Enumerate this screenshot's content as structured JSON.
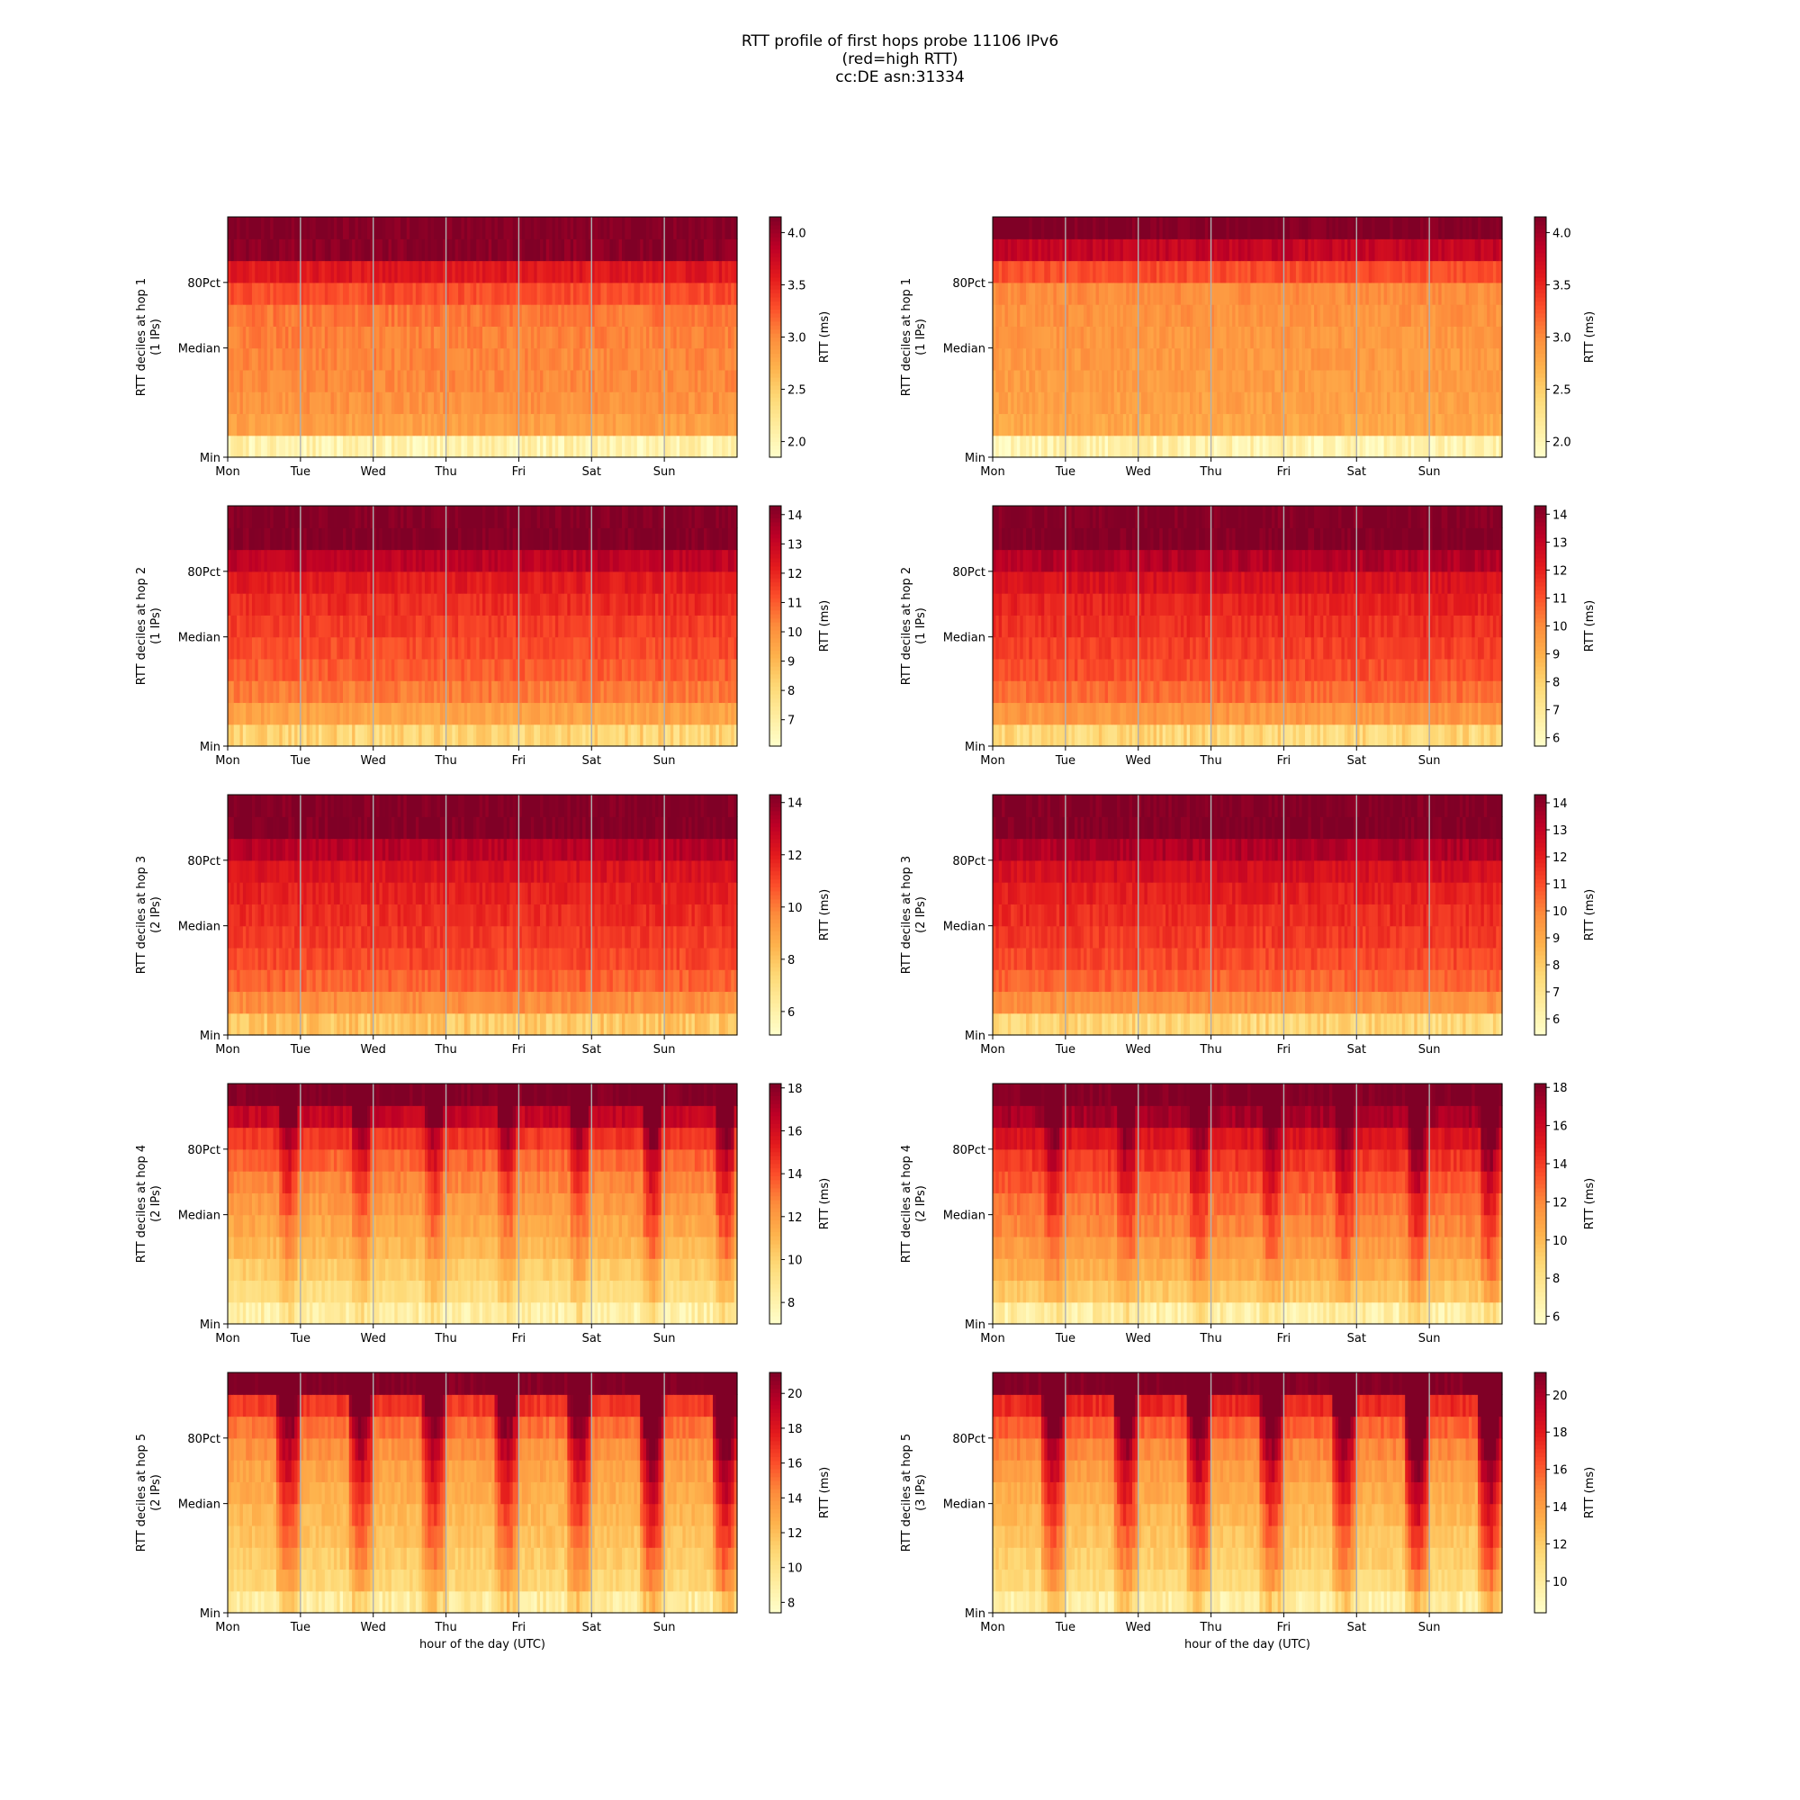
{
  "figure": {
    "title_lines": [
      "RTT profile of first hops probe 11106 IPv6",
      "(red=high RTT)",
      "cc:DE asn:31334"
    ]
  },
  "colors": {
    "colormap": [
      "#ffffcc",
      "#ffeda0",
      "#fed976",
      "#feb24c",
      "#fd8d3c",
      "#fc4e2a",
      "#e31a1c",
      "#bd0026",
      "#800026"
    ],
    "weekday_gridline": "#b0b0b0",
    "frame": "#000000"
  },
  "chart_data": [
    {
      "type": "heatmap",
      "panel": "hop1-left",
      "ylabel": "RTT deciles at hop 1",
      "ip_count": "(1 IPs)",
      "xlabel": "",
      "x_ticks": [
        "Mon",
        "Tue",
        "Wed",
        "Thu",
        "Fri",
        "Sat",
        "Sun"
      ],
      "y_ticks": [
        "Min",
        "Median",
        "80Pct"
      ],
      "colorbar_label": "RTT (ms)",
      "colorbar_ticks": [
        2.0,
        2.5,
        3.0,
        3.5,
        4.0
      ],
      "colorbar_tick_labels": [
        "2.0",
        "2.5",
        "3.0",
        "3.5",
        "4.0"
      ],
      "vmin": 1.85,
      "vmax": 4.15,
      "decile_rtt_ms": [
        2.05,
        2.85,
        2.95,
        3.0,
        3.02,
        3.05,
        3.1,
        3.3,
        3.6,
        4.1,
        4.15
      ],
      "weekday_pattern": "none"
    },
    {
      "type": "heatmap",
      "panel": "hop1-right",
      "ylabel": "RTT deciles at hop 1",
      "ip_count": "(1 IPs)",
      "xlabel": "",
      "x_ticks": [
        "Mon",
        "Tue",
        "Wed",
        "Thu",
        "Fri",
        "Sat",
        "Sun"
      ],
      "y_ticks": [
        "Min",
        "Median",
        "80Pct"
      ],
      "colorbar_label": "RTT (ms)",
      "colorbar_ticks": [
        2.0,
        2.5,
        3.0,
        3.5,
        4.0
      ],
      "colorbar_tick_labels": [
        "2.0",
        "2.5",
        "3.0",
        "3.5",
        "4.0"
      ],
      "vmin": 1.85,
      "vmax": 4.15,
      "decile_rtt_ms": [
        2.05,
        2.8,
        2.85,
        2.88,
        2.9,
        2.92,
        2.95,
        2.98,
        3.3,
        3.8,
        4.15
      ],
      "weekday_pattern": "none"
    },
    {
      "type": "heatmap",
      "panel": "hop2-left",
      "ylabel": "RTT deciles at hop 2",
      "ip_count": "(1 IPs)",
      "xlabel": "",
      "x_ticks": [
        "Mon",
        "Tue",
        "Wed",
        "Thu",
        "Fri",
        "Sat",
        "Sun"
      ],
      "y_ticks": [
        "Min",
        "Median",
        "80Pct"
      ],
      "colorbar_label": "RTT (ms)",
      "colorbar_ticks": [
        7,
        8,
        9,
        10,
        11,
        12,
        13,
        14
      ],
      "colorbar_tick_labels": [
        "7",
        "8",
        "9",
        "10",
        "11",
        "12",
        "13",
        "14"
      ],
      "vmin": 6.1,
      "vmax": 14.3,
      "decile_rtt_ms": [
        8.2,
        9.6,
        10.5,
        11.0,
        11.3,
        11.6,
        11.9,
        12.3,
        13.2,
        14.3,
        14.3
      ],
      "weekday_pattern": "none"
    },
    {
      "type": "heatmap",
      "panel": "hop2-right",
      "ylabel": "RTT deciles at hop 2",
      "ip_count": "(1 IPs)",
      "xlabel": "",
      "x_ticks": [
        "Mon",
        "Tue",
        "Wed",
        "Thu",
        "Fri",
        "Sat",
        "Sun"
      ],
      "y_ticks": [
        "Min",
        "Median",
        "80Pct"
      ],
      "colorbar_label": "RTT (ms)",
      "colorbar_ticks": [
        6,
        7,
        8,
        9,
        10,
        11,
        12,
        13,
        14
      ],
      "colorbar_tick_labels": [
        "6",
        "7",
        "8",
        "9",
        "10",
        "11",
        "12",
        "13",
        "14"
      ],
      "vmin": 5.7,
      "vmax": 14.3,
      "decile_rtt_ms": [
        7.8,
        9.7,
        10.6,
        11.1,
        11.4,
        11.7,
        12.0,
        12.5,
        13.4,
        14.3,
        14.3
      ],
      "weekday_pattern": "none"
    },
    {
      "type": "heatmap",
      "panel": "hop3-left",
      "ylabel": "RTT deciles at hop 3",
      "ip_count": "(2 IPs)",
      "xlabel": "",
      "x_ticks": [
        "Mon",
        "Tue",
        "Wed",
        "Thu",
        "Fri",
        "Sat",
        "Sun"
      ],
      "y_ticks": [
        "Min",
        "Median",
        "80Pct"
      ],
      "colorbar_label": "RTT (ms)",
      "colorbar_ticks": [
        6,
        8,
        10,
        12,
        14
      ],
      "colorbar_tick_labels": [
        "6",
        "8",
        "10",
        "12",
        "14"
      ],
      "vmin": 5.1,
      "vmax": 14.3,
      "decile_rtt_ms": [
        7.9,
        9.6,
        10.5,
        11.0,
        11.3,
        11.6,
        11.9,
        12.3,
        13.2,
        14.3,
        14.3
      ],
      "weekday_pattern": "none"
    },
    {
      "type": "heatmap",
      "panel": "hop3-right",
      "ylabel": "RTT deciles at hop 3",
      "ip_count": "(2 IPs)",
      "xlabel": "",
      "x_ticks": [
        "Mon",
        "Tue",
        "Wed",
        "Thu",
        "Fri",
        "Sat",
        "Sun"
      ],
      "y_ticks": [
        "Min",
        "Median",
        "80Pct"
      ],
      "colorbar_label": "RTT (ms)",
      "colorbar_ticks": [
        6,
        7,
        8,
        9,
        10,
        11,
        12,
        13,
        14
      ],
      "colorbar_tick_labels": [
        "6",
        "7",
        "8",
        "9",
        "10",
        "11",
        "12",
        "13",
        "14"
      ],
      "vmin": 5.4,
      "vmax": 14.3,
      "decile_rtt_ms": [
        7.6,
        9.7,
        10.6,
        11.1,
        11.4,
        11.7,
        12.0,
        12.5,
        13.4,
        14.3,
        14.3
      ],
      "weekday_pattern": "none"
    },
    {
      "type": "heatmap",
      "panel": "hop4-left",
      "ylabel": "RTT deciles at hop 4",
      "ip_count": "(2 IPs)",
      "xlabel": "",
      "x_ticks": [
        "Mon",
        "Tue",
        "Wed",
        "Thu",
        "Fri",
        "Sat",
        "Sun"
      ],
      "y_ticks": [
        "Min",
        "Median",
        "80Pct"
      ],
      "colorbar_label": "RTT (ms)",
      "colorbar_ticks": [
        8,
        10,
        12,
        14,
        16,
        18
      ],
      "colorbar_tick_labels": [
        "8",
        "10",
        "12",
        "14",
        "16",
        "18"
      ],
      "vmin": 7.0,
      "vmax": 18.2,
      "decile_rtt_ms": [
        8.2,
        9.4,
        10.2,
        11.0,
        11.6,
        12.1,
        12.7,
        13.5,
        14.6,
        16.5,
        18.2
      ],
      "weekday_pattern": "evening-peak"
    },
    {
      "type": "heatmap",
      "panel": "hop4-right",
      "ylabel": "RTT deciles at hop 4",
      "ip_count": "(2 IPs)",
      "xlabel": "",
      "x_ticks": [
        "Mon",
        "Tue",
        "Wed",
        "Thu",
        "Fri",
        "Sat",
        "Sun"
      ],
      "y_ticks": [
        "Min",
        "Median",
        "80Pct"
      ],
      "colorbar_label": "RTT (ms)",
      "colorbar_ticks": [
        6,
        8,
        10,
        12,
        14,
        16,
        18
      ],
      "colorbar_tick_labels": [
        "6",
        "8",
        "10",
        "12",
        "14",
        "16",
        "18"
      ],
      "vmin": 5.6,
      "vmax": 18.2,
      "decile_rtt_ms": [
        7.0,
        9.4,
        10.5,
        11.3,
        12.0,
        12.6,
        13.3,
        14.2,
        15.4,
        17.2,
        18.2
      ],
      "weekday_pattern": "evening-peak"
    },
    {
      "type": "heatmap",
      "panel": "hop5-left",
      "ylabel": "RTT deciles at hop 5",
      "ip_count": "(2 IPs)",
      "xlabel": "hour of the day (UTC)",
      "x_ticks": [
        "Mon",
        "Tue",
        "Wed",
        "Thu",
        "Fri",
        "Sat",
        "Sun"
      ],
      "y_ticks": [
        "Min",
        "Median",
        "80Pct"
      ],
      "colorbar_label": "RTT (ms)",
      "colorbar_ticks": [
        8,
        10,
        12,
        14,
        16,
        18,
        20
      ],
      "colorbar_tick_labels": [
        "8",
        "10",
        "12",
        "14",
        "16",
        "18",
        "20"
      ],
      "vmin": 7.4,
      "vmax": 21.2,
      "decile_rtt_ms": [
        9.2,
        10.8,
        11.4,
        11.9,
        12.3,
        12.8,
        13.3,
        14.0,
        15.0,
        16.8,
        21.2
      ],
      "weekday_pattern": "strong-evening-peak"
    },
    {
      "type": "heatmap",
      "panel": "hop5-right",
      "ylabel": "RTT deciles at hop 5",
      "ip_count": "(3 IPs)",
      "xlabel": "hour of the day (UTC)",
      "x_ticks": [
        "Mon",
        "Tue",
        "Wed",
        "Thu",
        "Fri",
        "Sat",
        "Sun"
      ],
      "y_ticks": [
        "Min",
        "Median",
        "80Pct"
      ],
      "colorbar_label": "RTT (ms)",
      "colorbar_ticks": [
        10,
        12,
        14,
        16,
        18,
        20
      ],
      "colorbar_tick_labels": [
        "10",
        "12",
        "14",
        "16",
        "18",
        "20"
      ],
      "vmin": 8.3,
      "vmax": 21.2,
      "decile_rtt_ms": [
        9.8,
        11.3,
        11.9,
        12.4,
        12.9,
        13.4,
        14.0,
        14.8,
        15.9,
        17.5,
        21.2
      ],
      "weekday_pattern": "strong-evening-peak"
    }
  ]
}
